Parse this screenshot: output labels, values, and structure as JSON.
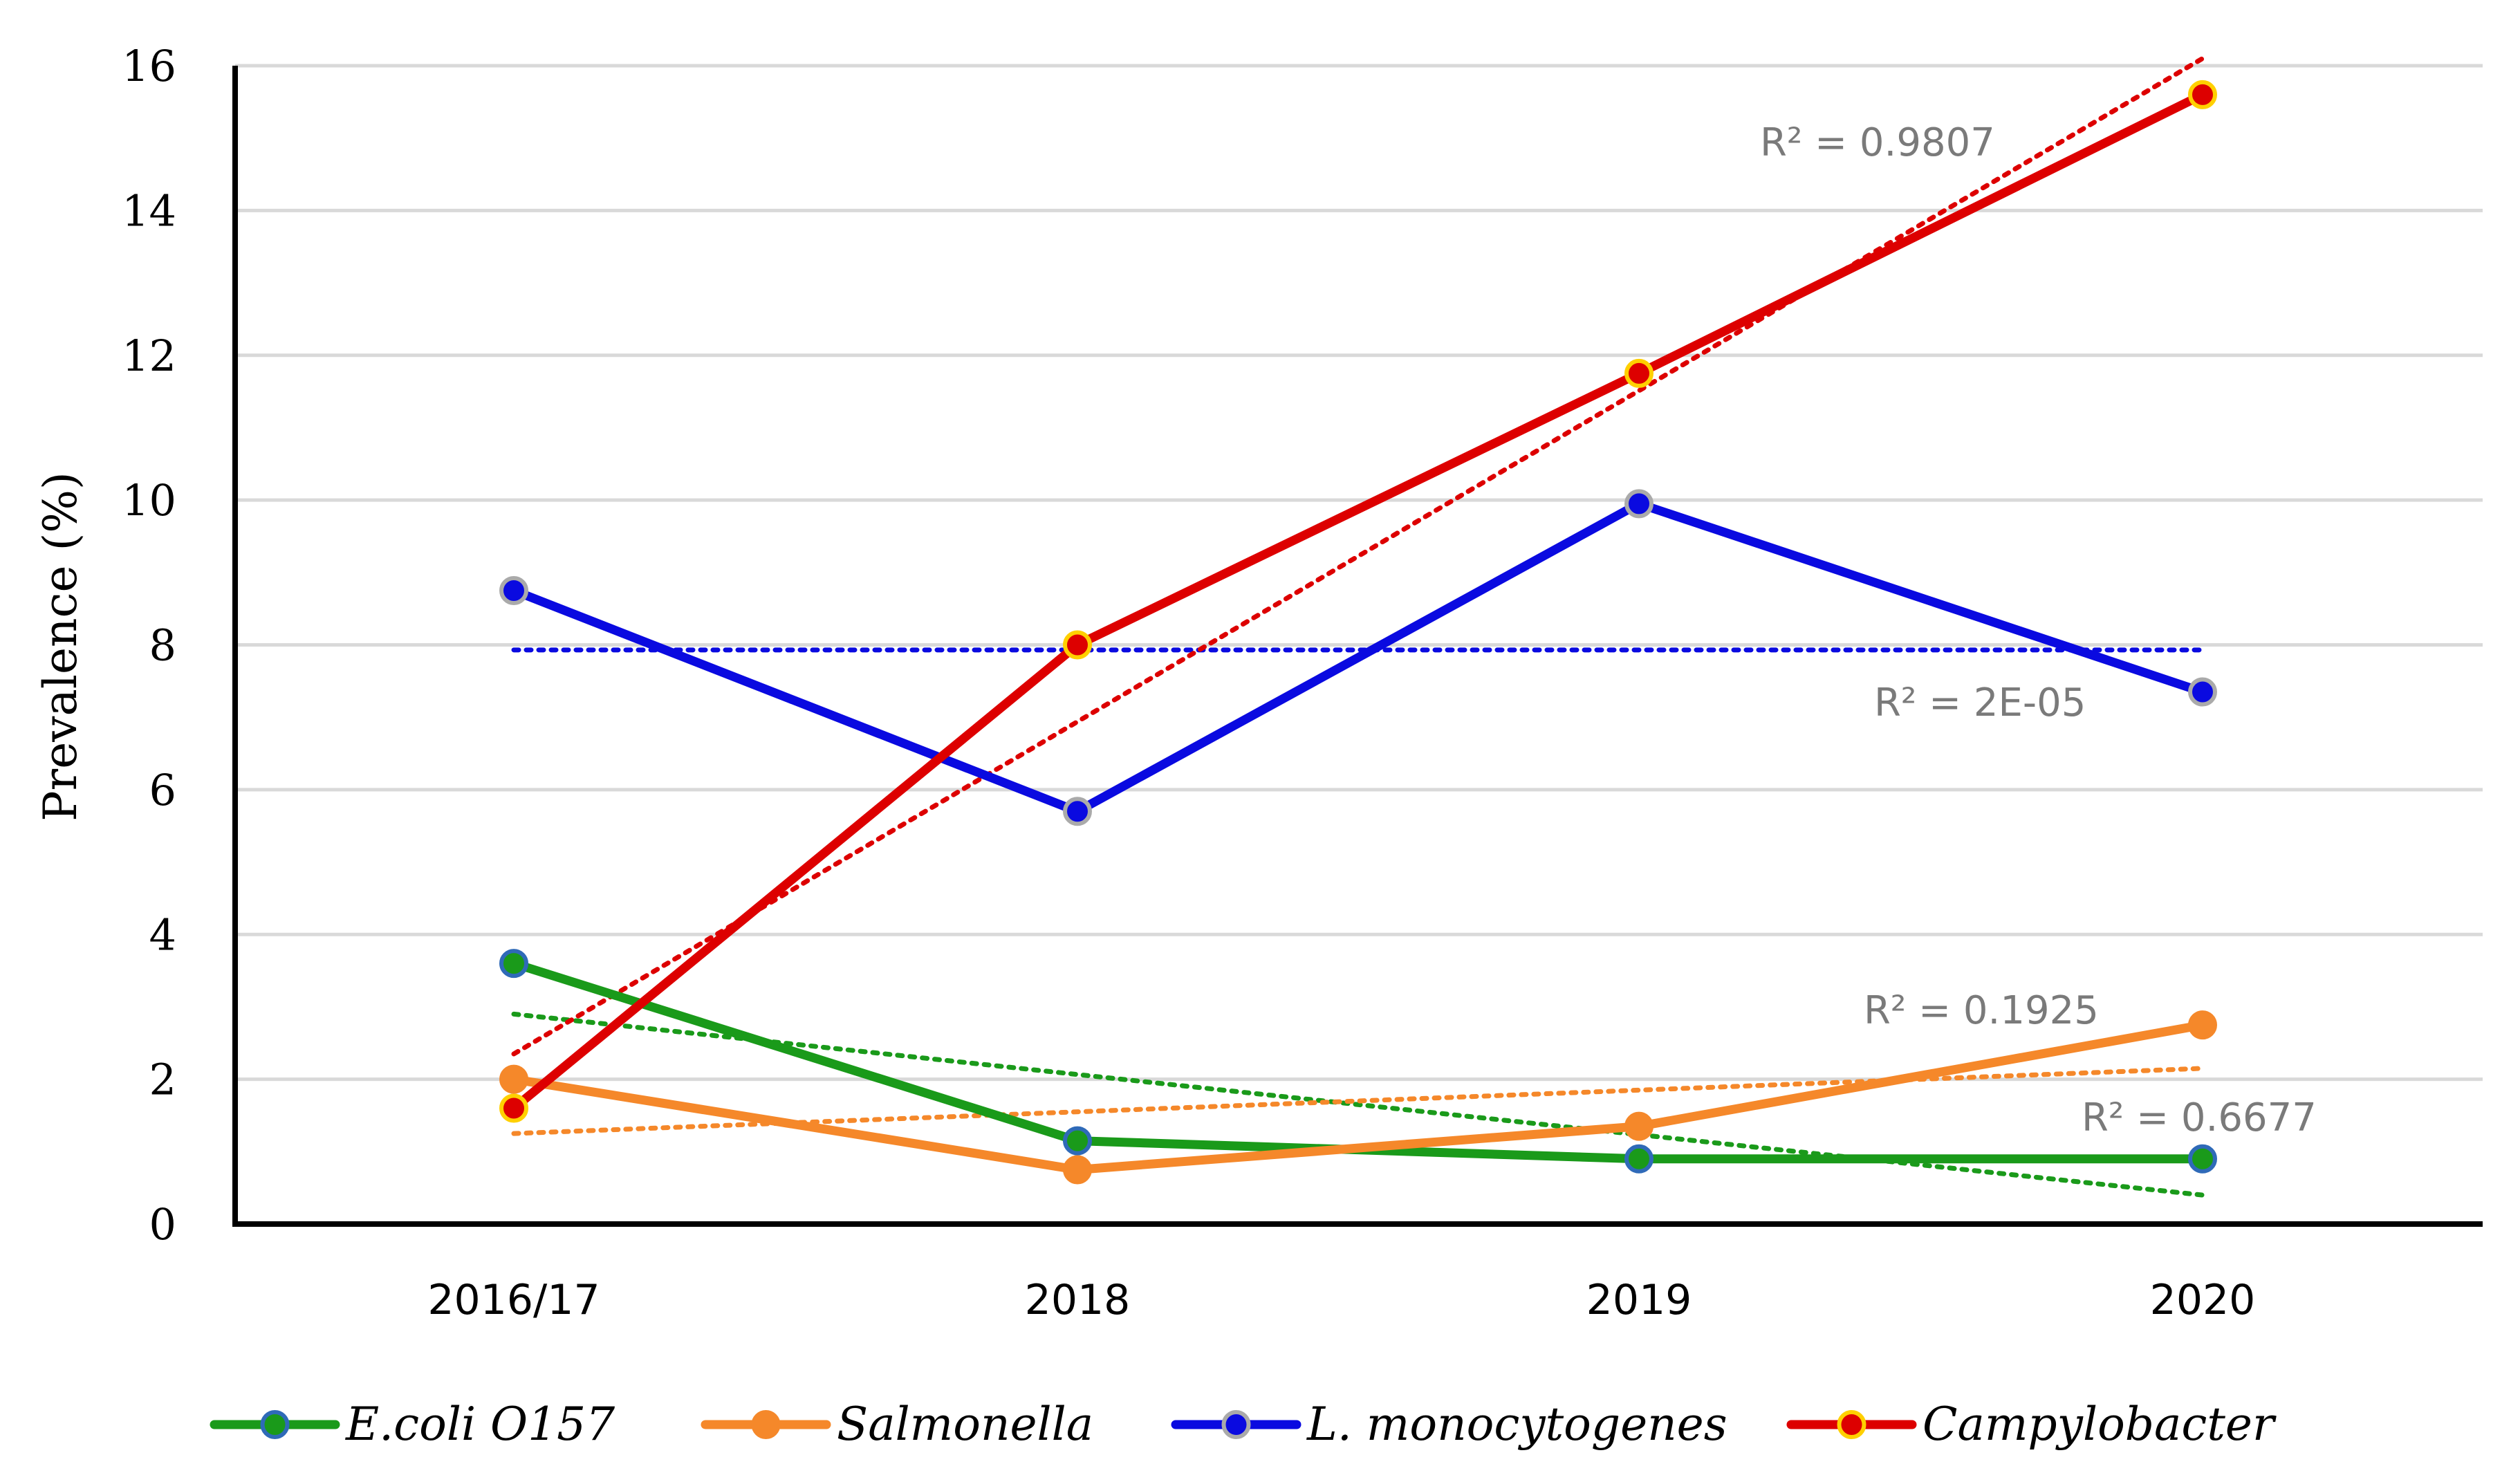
{
  "chart_data": {
    "type": "line",
    "title": "",
    "xlabel": "",
    "ylabel": "Prevalence (%)",
    "categories": [
      "2016/17",
      "2018",
      "2019",
      "2020"
    ],
    "ylim": [
      0,
      16
    ],
    "yticks": [
      0,
      2,
      4,
      6,
      8,
      10,
      12,
      14,
      16
    ],
    "grid": true,
    "legend_position": "bottom",
    "series": [
      {
        "name": "E.coli O157",
        "color": "#1a9a1a",
        "marker_fill": "#1a9a1a",
        "marker_edge": "#2f6ab8",
        "values": [
          3.6,
          1.15,
          0.9,
          0.9
        ],
        "trendline": {
          "start": 2.9,
          "end": 0.4,
          "r2_label": "R² = 0.6677"
        }
      },
      {
        "name": "Salmonella",
        "color": "#f5882a",
        "marker_fill": "#f5882a",
        "marker_edge": "#f5882a",
        "values": [
          2.0,
          0.75,
          1.35,
          2.75
        ],
        "trendline": {
          "start": 1.25,
          "end": 2.15,
          "r2_label": "R² = 0.1925"
        }
      },
      {
        "name": "L. monocytogenes",
        "color": "#0a0ae0",
        "marker_fill": "#0a0ae0",
        "marker_edge": "#aaaaaa",
        "values": [
          8.75,
          5.7,
          9.95,
          7.35
        ],
        "trendline": {
          "start": 7.93,
          "end": 7.93,
          "r2_label": "R² = 2E-05"
        }
      },
      {
        "name": "Campylobacter",
        "color": "#dd0000",
        "marker_fill": "#dd0000",
        "marker_edge": "#ffd000",
        "values": [
          1.6,
          8.0,
          11.75,
          15.6
        ],
        "trendline": {
          "start": 2.35,
          "end": 16.1,
          "r2_label": "R² = 0.9807"
        }
      }
    ]
  }
}
